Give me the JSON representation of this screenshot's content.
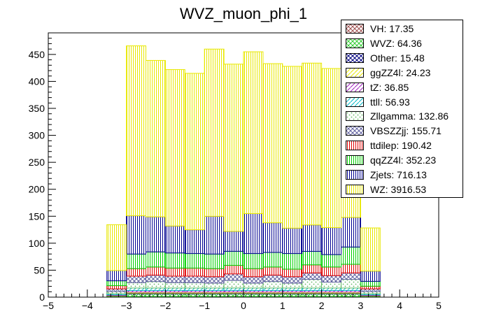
{
  "chart_data": {
    "type": "stacked-histogram",
    "title": "WVZ_muon_phi_1",
    "xlabel": "",
    "ylabel": "",
    "xlim": [
      -5,
      5
    ],
    "ylim": [
      0,
      490
    ],
    "x_ticks": [
      -5,
      -4,
      -3,
      -2,
      -1,
      0,
      1,
      2,
      3,
      4,
      5
    ],
    "y_ticks": [
      0,
      50,
      100,
      150,
      200,
      250,
      300,
      350,
      400,
      450
    ],
    "bin_edges": [
      -3.5,
      -3.0,
      -2.5,
      -2.0,
      -1.5,
      -1.0,
      -0.5,
      0.0,
      0.5,
      1.0,
      1.5,
      2.0,
      2.5,
      3.0,
      3.5
    ],
    "stack_order": "bottom-to-top",
    "series": [
      {
        "name": "VH",
        "key": "VH",
        "color": "#a05050",
        "pattern": "crosshatch",
        "values": [
          0.5,
          1.3,
          1.3,
          1.3,
          1.3,
          1.3,
          1.4,
          1.3,
          1.3,
          1.3,
          1.3,
          1.3,
          1.3,
          0.5
        ]
      },
      {
        "name": "WVZ",
        "key": "WVZ",
        "color": "#33cc33",
        "pattern": "crosshatch",
        "values": [
          1.5,
          5,
          5,
          5,
          5,
          5,
          5,
          5,
          5,
          5,
          5,
          5,
          5,
          1.5
        ]
      },
      {
        "name": "Other",
        "key": "Other",
        "color": "#000080",
        "pattern": "crosshatch",
        "values": [
          0.5,
          1.2,
          1.2,
          1.2,
          1.2,
          1.2,
          1.2,
          1.2,
          1.2,
          1.2,
          1.2,
          1.2,
          1.2,
          0.5
        ]
      },
      {
        "name": "ggZZ4l",
        "key": "ggZZ4l",
        "color": "#e8e800",
        "pattern": "hatch",
        "values": [
          0.8,
          1.9,
          1.9,
          1.9,
          1.9,
          1.9,
          1.9,
          1.9,
          1.9,
          1.9,
          1.9,
          1.9,
          1.9,
          0.8
        ]
      },
      {
        "name": "tZ",
        "key": "tZ",
        "color": "#a020c0",
        "pattern": "hatch",
        "values": [
          1,
          3,
          3,
          3,
          3,
          3,
          3,
          3,
          3,
          3,
          3,
          3,
          3,
          1
        ]
      },
      {
        "name": "ttll",
        "key": "ttll",
        "color": "#00b8c8",
        "pattern": "hatch",
        "values": [
          2,
          4.5,
          4.5,
          4.5,
          4.5,
          4.5,
          4.5,
          4.5,
          4.5,
          4.5,
          4.5,
          4.5,
          4.5,
          2
        ]
      },
      {
        "name": "Zllgamma",
        "key": "Zllgamma",
        "color": "#60b860",
        "pattern": "dots",
        "values": [
          4,
          10,
          12,
          10,
          10,
          9,
          14,
          9,
          12,
          9,
          16,
          11,
          16,
          4
        ]
      },
      {
        "name": "VBSZZjj",
        "key": "VBSZZjj",
        "color": "#6060a0",
        "pattern": "crosshatch",
        "values": [
          5,
          12,
          12,
          12,
          12,
          12,
          12,
          12,
          12,
          12,
          12,
          12,
          12,
          5
        ]
      },
      {
        "name": "ttdilep",
        "key": "ttdilep",
        "color": "#e00000",
        "pattern": "vlines",
        "values": [
          6,
          14,
          15,
          15,
          15,
          15,
          16,
          15,
          15,
          14,
          15,
          16,
          16,
          5
        ]
      },
      {
        "name": "qqZZ4l",
        "key": "qqZZ4l",
        "color": "#00d000",
        "pattern": "vlines",
        "values": [
          9,
          27,
          28,
          28,
          27,
          27,
          26,
          28,
          27,
          29,
          25,
          23,
          32,
          9
        ]
      },
      {
        "name": "Zjets",
        "key": "Zjets",
        "color": "#000090",
        "pattern": "vlines",
        "values": [
          19,
          71,
          65,
          50,
          44,
          70,
          37,
          74,
          55,
          47,
          49,
          50,
          55,
          19
        ]
      },
      {
        "name": "WZ",
        "key": "WZ",
        "color": "#e8e800",
        "pattern": "vlines",
        "values": [
          85,
          315,
          290,
          290,
          290,
          310,
          310,
          300,
          295,
          300,
          300,
          295,
          310,
          80
        ]
      }
    ],
    "legend": {
      "placement": "top-right",
      "entries": [
        {
          "label": "VH: 17.35",
          "key": "VH"
        },
        {
          "label": "WVZ: 64.36",
          "key": "WVZ"
        },
        {
          "label": "Other: 15.48",
          "key": "Other"
        },
        {
          "label": "ggZZ4l: 24.23",
          "key": "ggZZ4l"
        },
        {
          "label": "tZ: 36.85",
          "key": "tZ"
        },
        {
          "label": "ttll: 56.93",
          "key": "ttll"
        },
        {
          "label": "Zllgamma: 132.86",
          "key": "Zllgamma"
        },
        {
          "label": "VBSZZjj: 155.71",
          "key": "VBSZZjj"
        },
        {
          "label": "ttdilep: 190.42",
          "key": "ttdilep"
        },
        {
          "label": "qqZZ4l: 352.23",
          "key": "qqZZ4l"
        },
        {
          "label": "Zjets: 716.13",
          "key": "Zjets"
        },
        {
          "label": "WZ: 3916.53",
          "key": "WZ"
        }
      ]
    }
  }
}
